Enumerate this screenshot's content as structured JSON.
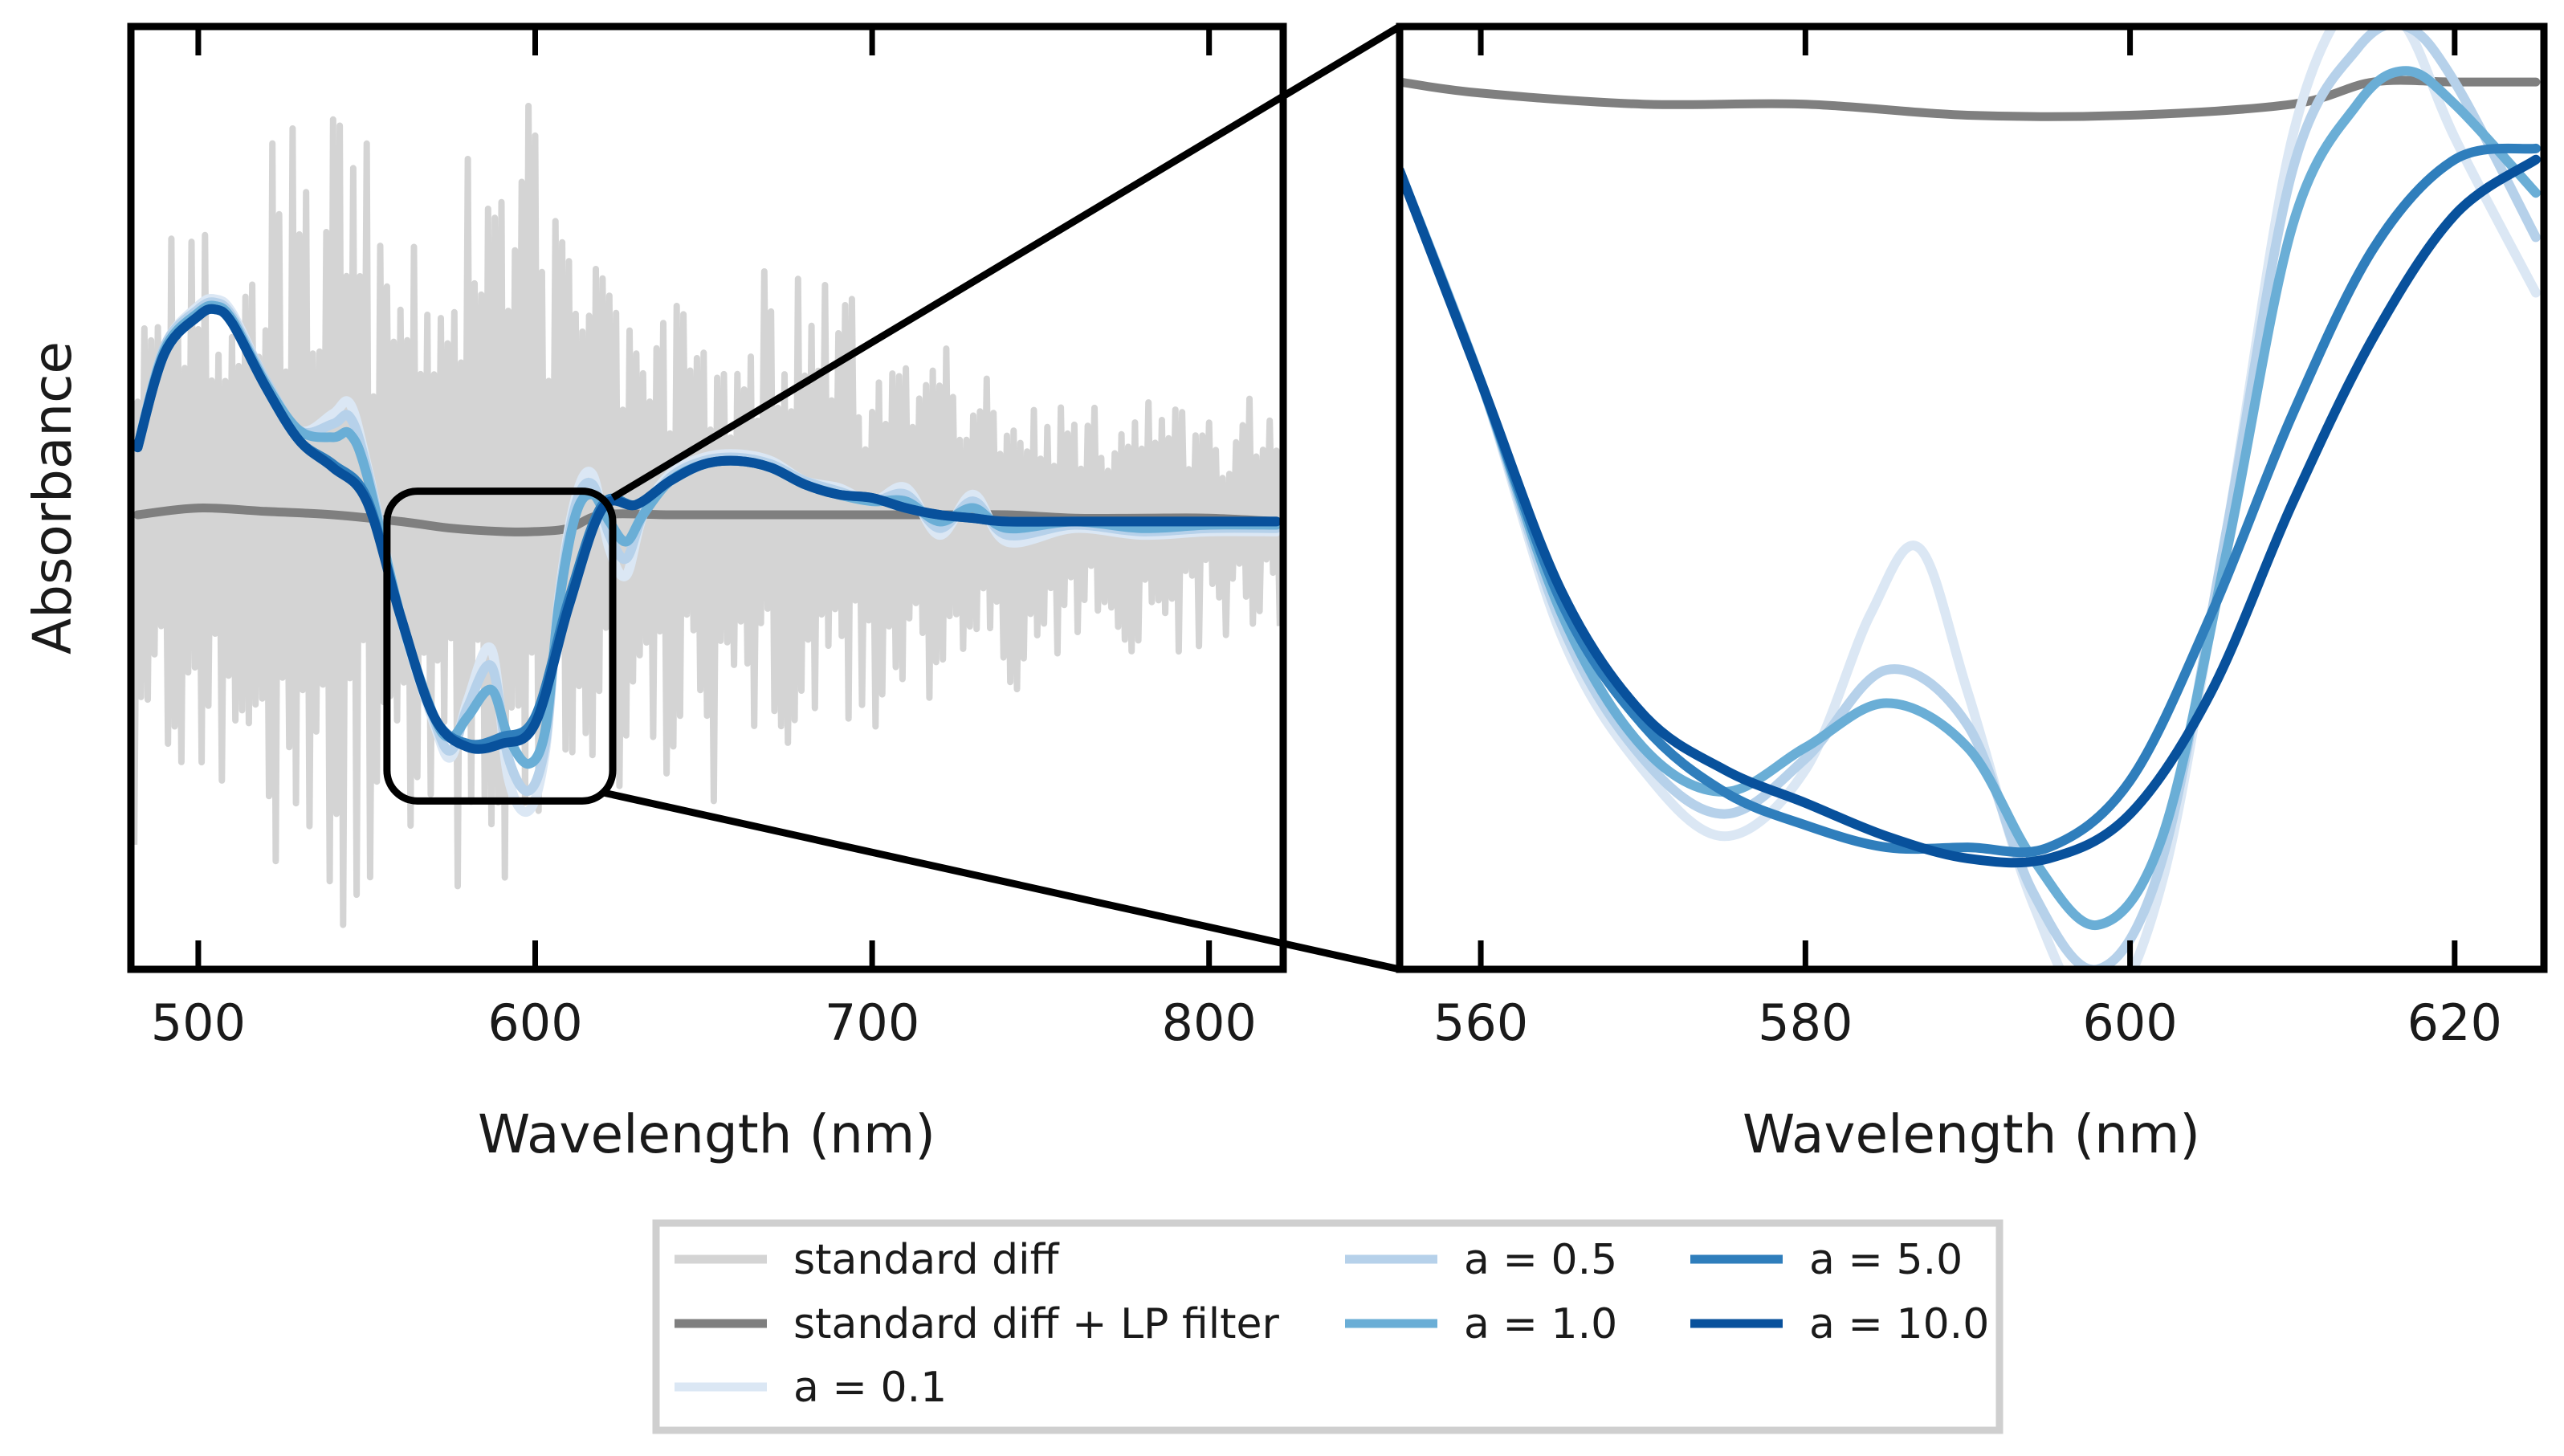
{
  "chart_data": [
    {
      "id": "overview",
      "type": "line",
      "title": "",
      "xlabel": "Wavelength (nm)",
      "ylabel": "Absorbance",
      "xlim": [
        480,
        822
      ],
      "ylim": [
        -1.35,
        1.45
      ],
      "xticks": [
        500,
        600,
        700,
        800
      ],
      "yticks": [],
      "grid": false,
      "zoom_box": {
        "x_range": [
          556,
          623
        ],
        "y_range": [
          -0.85,
          0.07
        ]
      },
      "noise_trace": {
        "name": "standard diff",
        "color": "#d4d4d4",
        "envelope": {
          "x": [
            482,
            500,
            520,
            540,
            560,
            580,
            600,
            620,
            640,
            660,
            680,
            700,
            720,
            740,
            760,
            780,
            800,
            820
          ],
          "upper": [
            0.85,
            1.0,
            1.15,
            1.2,
            1.05,
            1.12,
            1.25,
            0.95,
            0.78,
            0.7,
            0.78,
            0.62,
            0.56,
            0.5,
            0.44,
            0.4,
            0.36,
            0.35
          ],
          "lower": [
            -1.0,
            -1.05,
            -1.2,
            -1.25,
            -1.1,
            -1.2,
            -1.15,
            -1.0,
            -0.98,
            -0.92,
            -0.78,
            -0.8,
            -0.65,
            -0.55,
            -0.48,
            -0.45,
            -0.4,
            -0.38
          ]
        }
      },
      "series": [
        {
          "name": "standard diff + LP filter",
          "color": "#7f7f7f",
          "x": [
            482,
            500,
            520,
            540,
            560,
            575,
            590,
            600,
            610,
            620,
            640,
            660,
            680,
            700,
            720,
            740,
            760,
            780,
            800,
            820
          ],
          "y": [
            0.0,
            0.02,
            0.01,
            0.0,
            -0.02,
            -0.04,
            -0.05,
            -0.05,
            -0.04,
            0.0,
            0.0,
            0.0,
            0.0,
            0.0,
            0.0,
            0.0,
            -0.01,
            -0.01,
            -0.01,
            -0.02
          ]
        },
        {
          "name": "a = 0.1",
          "color": "#dbe7f4",
          "x": [
            482,
            490,
            500,
            505,
            510,
            520,
            530,
            540,
            545,
            550,
            560,
            570,
            575,
            580,
            587,
            592,
            598,
            603,
            607,
            612,
            617,
            622,
            627,
            632,
            640,
            650,
            660,
            670,
            680,
            690,
            700,
            710,
            720,
            730,
            740,
            760,
            780,
            800,
            820
          ],
          "y": [
            0.2,
            0.5,
            0.62,
            0.64,
            0.6,
            0.4,
            0.25,
            0.3,
            0.33,
            0.15,
            -0.3,
            -0.62,
            -0.72,
            -0.55,
            -0.4,
            -0.78,
            -0.88,
            -0.7,
            -0.25,
            0.05,
            0.12,
            -0.1,
            -0.18,
            0.0,
            0.12,
            0.17,
            0.18,
            0.16,
            0.1,
            0.08,
            0.04,
            0.08,
            -0.06,
            0.06,
            -0.08,
            -0.04,
            -0.06,
            -0.05,
            -0.05
          ]
        },
        {
          "name": "a = 0.5",
          "color": "#b6d1ea",
          "x": [
            482,
            490,
            500,
            505,
            510,
            520,
            530,
            540,
            545,
            550,
            560,
            570,
            575,
            580,
            587,
            592,
            598,
            603,
            607,
            612,
            617,
            622,
            627,
            632,
            640,
            650,
            660,
            670,
            680,
            690,
            700,
            710,
            720,
            730,
            740,
            760,
            780,
            800,
            820
          ],
          "y": [
            0.2,
            0.5,
            0.61,
            0.63,
            0.59,
            0.4,
            0.25,
            0.27,
            0.29,
            0.14,
            -0.3,
            -0.61,
            -0.7,
            -0.57,
            -0.45,
            -0.72,
            -0.82,
            -0.68,
            -0.26,
            0.03,
            0.09,
            -0.06,
            -0.13,
            0.0,
            0.11,
            0.16,
            0.17,
            0.15,
            0.1,
            0.07,
            0.04,
            0.06,
            -0.04,
            0.04,
            -0.06,
            -0.03,
            -0.05,
            -0.04,
            -0.04
          ]
        },
        {
          "name": "a = 1.0",
          "color": "#6aaed6",
          "x": [
            482,
            490,
            500,
            505,
            510,
            520,
            530,
            540,
            545,
            550,
            560,
            570,
            575,
            580,
            587,
            592,
            598,
            603,
            607,
            612,
            617,
            622,
            627,
            632,
            640,
            650,
            660,
            670,
            680,
            690,
            700,
            710,
            720,
            730,
            740,
            760,
            780,
            800,
            820
          ],
          "y": [
            0.2,
            0.49,
            0.6,
            0.62,
            0.58,
            0.39,
            0.25,
            0.23,
            0.24,
            0.12,
            -0.3,
            -0.6,
            -0.66,
            -0.6,
            -0.52,
            -0.66,
            -0.74,
            -0.64,
            -0.27,
            0.0,
            0.06,
            -0.02,
            -0.08,
            0.0,
            0.1,
            0.15,
            0.16,
            0.14,
            0.09,
            0.06,
            0.04,
            0.04,
            -0.02,
            0.02,
            -0.04,
            -0.02,
            -0.04,
            -0.03,
            -0.03
          ]
        },
        {
          "name": "a = 5.0",
          "color": "#2f7ebc",
          "x": [
            482,
            490,
            500,
            505,
            510,
            520,
            530,
            540,
            550,
            560,
            570,
            580,
            590,
            600,
            610,
            620,
            630,
            640,
            650,
            660,
            670,
            680,
            690,
            700,
            710,
            720,
            730,
            740,
            760,
            780,
            800,
            820
          ],
          "y": [
            0.2,
            0.48,
            0.59,
            0.61,
            0.57,
            0.38,
            0.22,
            0.15,
            0.05,
            -0.3,
            -0.6,
            -0.68,
            -0.66,
            -0.6,
            -0.25,
            0.03,
            0.03,
            0.1,
            0.15,
            0.16,
            0.14,
            0.09,
            0.06,
            0.05,
            0.02,
            0.0,
            -0.01,
            -0.02,
            -0.02,
            -0.02,
            -0.02,
            -0.02
          ]
        },
        {
          "name": "a = 10.0",
          "color": "#08519c",
          "x": [
            482,
            490,
            500,
            505,
            510,
            520,
            530,
            540,
            550,
            560,
            570,
            580,
            590,
            600,
            610,
            620,
            630,
            640,
            650,
            660,
            670,
            680,
            690,
            700,
            710,
            720,
            730,
            740,
            760,
            780,
            800,
            820
          ],
          "y": [
            0.2,
            0.48,
            0.59,
            0.61,
            0.57,
            0.38,
            0.22,
            0.14,
            0.04,
            -0.3,
            -0.6,
            -0.69,
            -0.68,
            -0.62,
            -0.27,
            0.02,
            0.03,
            0.1,
            0.15,
            0.16,
            0.14,
            0.09,
            0.06,
            0.05,
            0.02,
            0.0,
            -0.01,
            -0.02,
            -0.02,
            -0.02,
            -0.02,
            -0.02
          ]
        }
      ]
    },
    {
      "id": "zoom",
      "type": "line",
      "title": "",
      "xlabel": "Wavelength (nm)",
      "ylabel": "",
      "xlim": [
        555,
        625.5
      ],
      "ylim": [
        -0.8,
        0.05
      ],
      "xticks": [
        560,
        580,
        600,
        620
      ],
      "yticks": [],
      "grid": false,
      "series": [
        {
          "name": "standard diff + LP filter",
          "color": "#7f7f7f",
          "x": [
            555,
            560,
            570,
            580,
            590,
            600,
            610,
            615,
            620,
            625
          ],
          "y": [
            0.0,
            -0.01,
            -0.02,
            -0.02,
            -0.03,
            -0.03,
            -0.02,
            0.0,
            0.0,
            0.0
          ]
        },
        {
          "name": "a = 0.1",
          "color": "#dbe7f4",
          "x": [
            555,
            560,
            565,
            570,
            575,
            580,
            584,
            587,
            590,
            594,
            598,
            602,
            606,
            610,
            614,
            617,
            620,
            625
          ],
          "y": [
            -0.08,
            -0.27,
            -0.5,
            -0.62,
            -0.68,
            -0.62,
            -0.48,
            -0.42,
            -0.55,
            -0.74,
            -0.84,
            -0.72,
            -0.4,
            -0.05,
            0.08,
            0.05,
            -0.05,
            -0.19
          ]
        },
        {
          "name": "a = 0.5",
          "color": "#b6d1ea",
          "x": [
            555,
            560,
            565,
            570,
            575,
            580,
            585,
            590,
            594,
            598,
            602,
            606,
            610,
            614,
            617,
            620,
            625
          ],
          "y": [
            -0.08,
            -0.27,
            -0.49,
            -0.61,
            -0.66,
            -0.61,
            -0.53,
            -0.58,
            -0.73,
            -0.8,
            -0.7,
            -0.4,
            -0.08,
            0.03,
            0.05,
            0.0,
            -0.14
          ]
        },
        {
          "name": "a = 1.0",
          "color": "#6aaed6",
          "x": [
            555,
            560,
            565,
            570,
            575,
            580,
            585,
            590,
            594,
            598,
            602,
            606,
            610,
            614,
            617,
            620,
            625
          ],
          "y": [
            -0.08,
            -0.27,
            -0.48,
            -0.6,
            -0.64,
            -0.6,
            -0.56,
            -0.6,
            -0.7,
            -0.76,
            -0.68,
            -0.42,
            -0.13,
            -0.02,
            0.01,
            -0.02,
            -0.1
          ]
        },
        {
          "name": "a = 5.0",
          "color": "#2f7ebc",
          "x": [
            555,
            560,
            565,
            570,
            575,
            580,
            585,
            590,
            595,
            600,
            605,
            610,
            615,
            620,
            625
          ],
          "y": [
            -0.08,
            -0.27,
            -0.47,
            -0.58,
            -0.64,
            -0.67,
            -0.69,
            -0.69,
            -0.69,
            -0.63,
            -0.48,
            -0.3,
            -0.15,
            -0.07,
            -0.06
          ]
        },
        {
          "name": "a = 10.0",
          "color": "#08519c",
          "x": [
            555,
            560,
            565,
            570,
            575,
            580,
            585,
            590,
            595,
            600,
            605,
            610,
            615,
            620,
            625
          ],
          "y": [
            -0.08,
            -0.27,
            -0.46,
            -0.57,
            -0.62,
            -0.65,
            -0.68,
            -0.7,
            -0.7,
            -0.66,
            -0.55,
            -0.38,
            -0.23,
            -0.12,
            -0.07
          ]
        }
      ]
    }
  ],
  "legend": {
    "placement": "bottom-center",
    "entries": [
      {
        "label": "standard diff",
        "color": "#d4d4d4"
      },
      {
        "label": "standard diff + LP filter",
        "color": "#7f7f7f"
      },
      {
        "label": "a = 0.1",
        "color": "#dbe7f4"
      },
      {
        "label": "a = 0.5",
        "color": "#b6d1ea"
      },
      {
        "label": "a = 1.0",
        "color": "#6aaed6"
      },
      {
        "label": "a = 5.0",
        "color": "#2f7ebc"
      },
      {
        "label": "a = 10.0",
        "color": "#08519c"
      }
    ]
  }
}
